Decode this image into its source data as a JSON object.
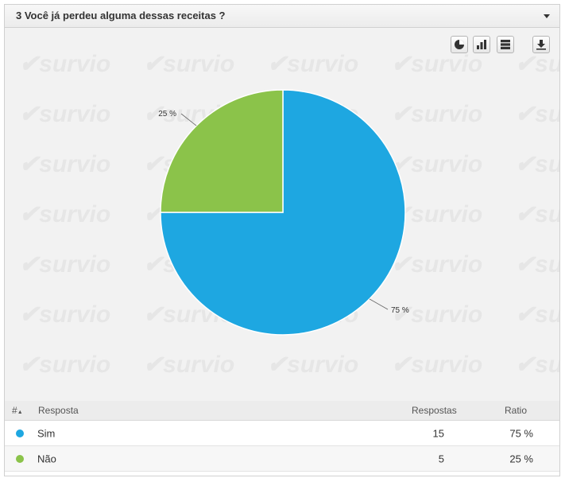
{
  "question": {
    "title": "3 Você já perdeu alguma dessas receitas ?"
  },
  "watermark": {
    "text": "✔survio"
  },
  "toolbar": {
    "icons": [
      "pie-chart-icon",
      "bar-chart-icon",
      "table-view-icon",
      "download-icon"
    ]
  },
  "chart_data": {
    "type": "pie",
    "categories": [
      "Sim",
      "Não"
    ],
    "values": [
      75,
      25
    ],
    "labels": [
      "75 %",
      "25 %"
    ],
    "colors": [
      "#1ea7e1",
      "#8bc34a"
    ]
  },
  "table": {
    "headers": {
      "hash": "#",
      "resposta": "Resposta",
      "respostas": "Respostas",
      "ratio": "Ratio"
    },
    "rows": [
      {
        "resposta": "Sim",
        "respostas": "15",
        "ratio": "75 %",
        "color": "#1ea7e1"
      },
      {
        "resposta": "Não",
        "respostas": "5",
        "ratio": "25 %",
        "color": "#8bc34a"
      }
    ]
  }
}
